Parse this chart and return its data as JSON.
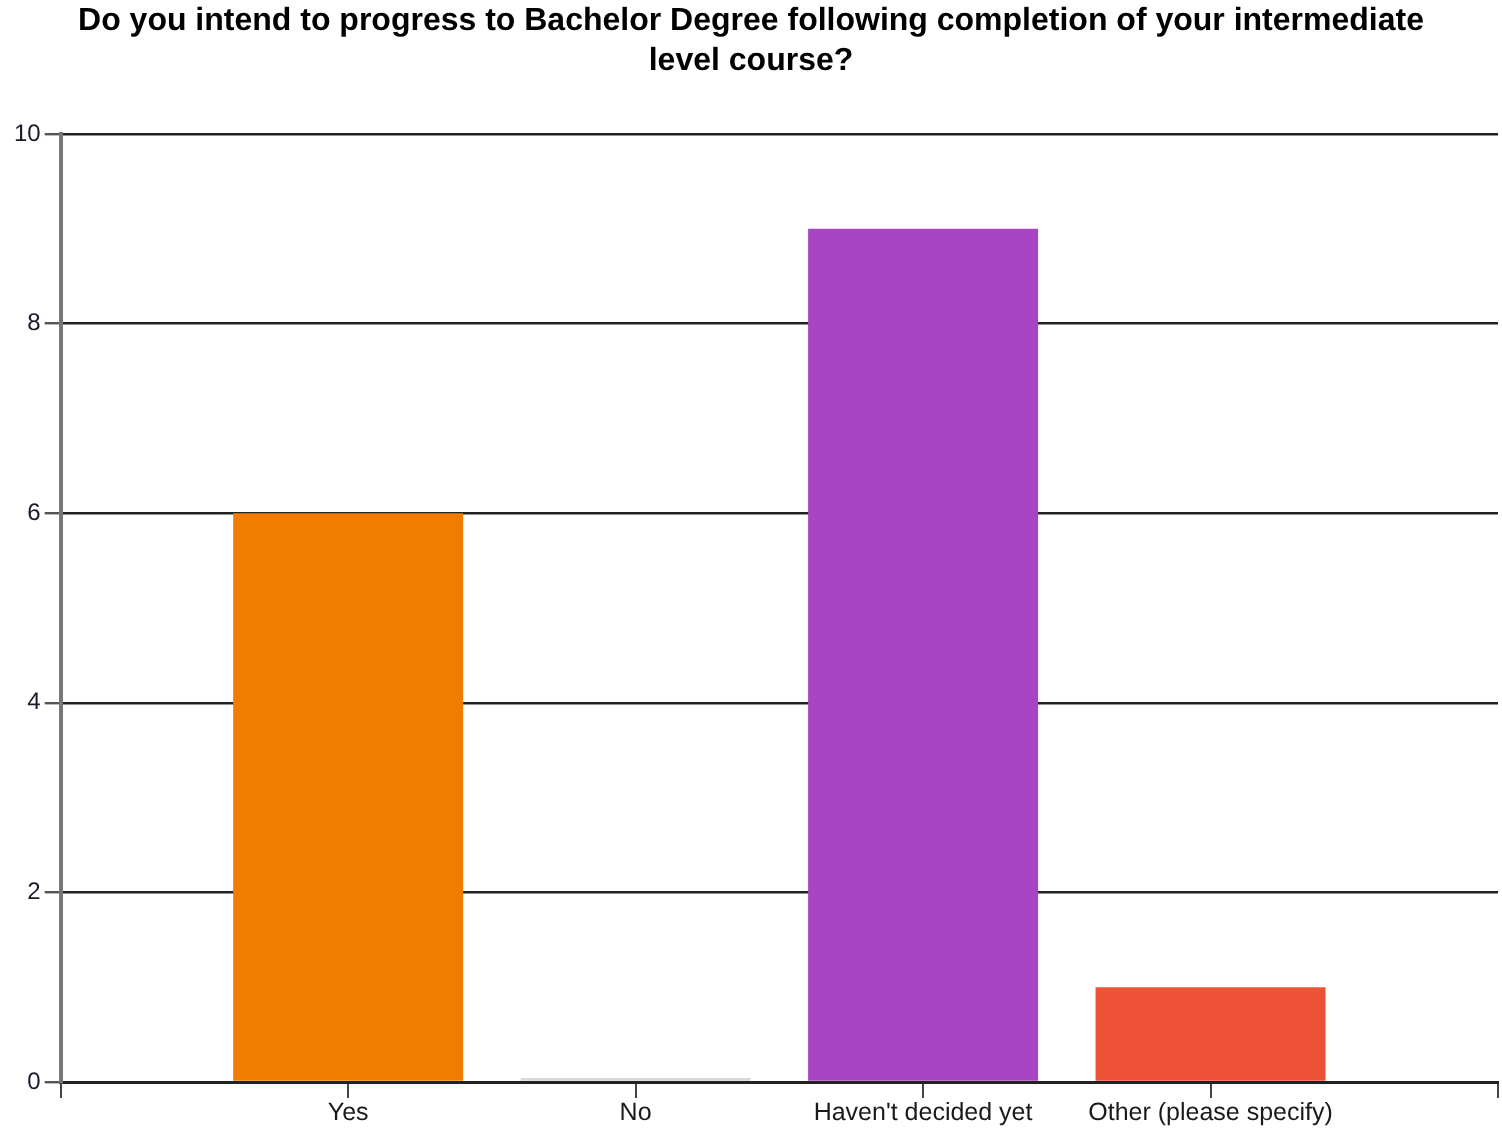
{
  "chart_data": {
    "type": "bar",
    "title": "Do you intend to progress to Bachelor Degree following completion of your intermediate level course?",
    "categories": [
      "Yes",
      "No",
      "Haven't decided yet",
      "Other (please specify)"
    ],
    "values": [
      6,
      0,
      9,
      1
    ],
    "colors": [
      "#f07c00",
      "#d9d9d9",
      "#a944c4",
      "#ee5236"
    ],
    "ylim": [
      0,
      10
    ],
    "yticks": [
      0,
      2,
      4,
      6,
      8,
      10
    ],
    "grid": "y",
    "legend": false
  }
}
